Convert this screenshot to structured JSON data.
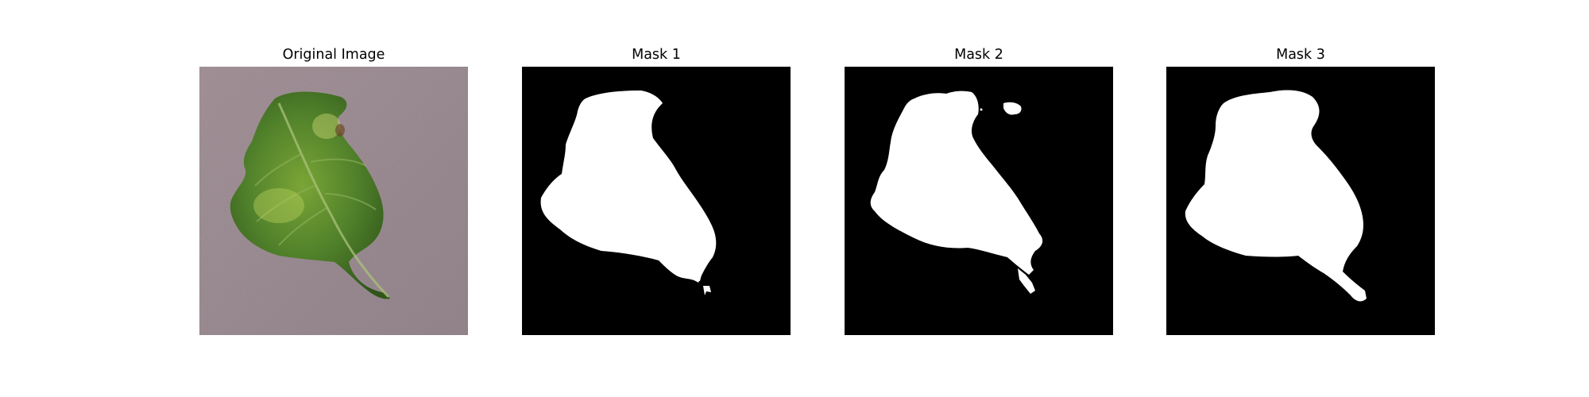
{
  "figure": {
    "panels": [
      {
        "title": "Original Image",
        "content": "photo of a green leaf on a mauve textured background"
      },
      {
        "title": "Mask 1",
        "content": "binary segmentation mask"
      },
      {
        "title": "Mask 2",
        "content": "binary segmentation mask"
      },
      {
        "title": "Mask 3",
        "content": "binary segmentation mask"
      }
    ]
  },
  "colors": {
    "background": "#ffffff",
    "mask_foreground": "#ffffff",
    "mask_background": "#000000",
    "surface": "#9e8e94",
    "leaf_dark": "#3f6b22",
    "leaf_light": "#8cb43a"
  }
}
